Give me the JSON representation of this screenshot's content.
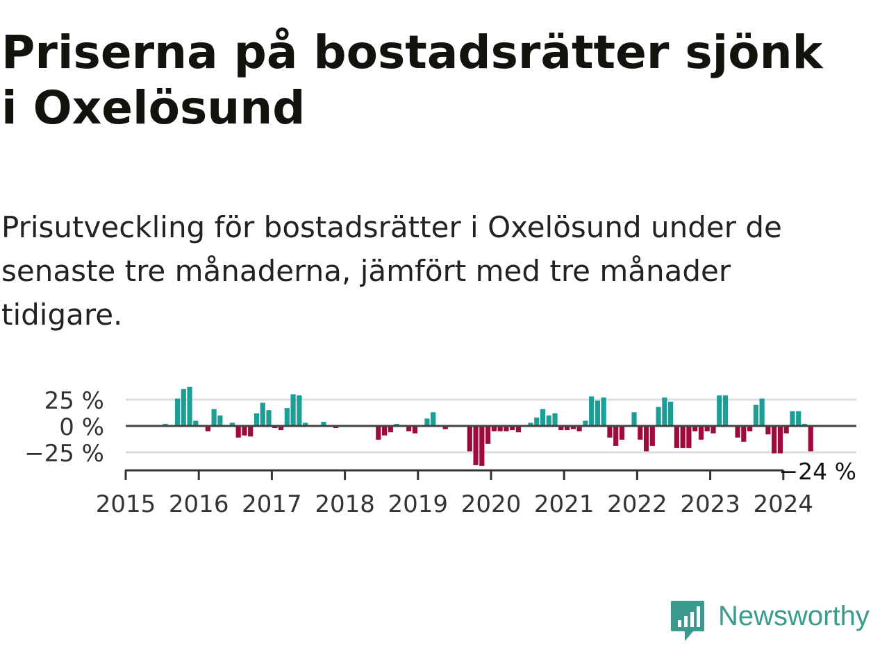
{
  "title": "Priserna på bostadsrätter sjönk i Oxelösund",
  "subtitle": "Prisutveckling för bostadsrätter i Oxelösund under de senaste tre månaderna, jämfört med tre månader tidigare.",
  "brand": {
    "name": "Newsworthy",
    "color": "#3a9a8e",
    "icon": "bar-chart-speech-bubble-icon"
  },
  "colors": {
    "positive": "#1a9e96",
    "negative": "#9e0a3c",
    "grid": "#dddddd",
    "axis": "#333333",
    "zero_line": "#444444"
  },
  "chart_data": {
    "type": "bar",
    "x_axis": "time (monthly)",
    "y_unit": "%",
    "y_ticks": [
      {
        "value": 25,
        "label": "25 %"
      },
      {
        "value": 0,
        "label": "0 %"
      },
      {
        "value": -25,
        "label": "−25 %"
      }
    ],
    "ylim": [
      -40,
      45
    ],
    "x_ticks": [
      "2015",
      "2016",
      "2017",
      "2018",
      "2019",
      "2020",
      "2021",
      "2022",
      "2023",
      "2024"
    ],
    "x_start": "2015-01",
    "x_end": "2024-12",
    "grid": true,
    "series": [
      {
        "values": [
          {
            "month": "2015-07",
            "value": 2
          },
          {
            "month": "2015-09",
            "value": 26
          },
          {
            "month": "2015-10",
            "value": 35
          },
          {
            "month": "2015-11",
            "value": 37
          },
          {
            "month": "2015-12",
            "value": 5
          },
          {
            "month": "2016-02",
            "value": -5
          },
          {
            "month": "2016-03",
            "value": 16
          },
          {
            "month": "2016-04",
            "value": 10
          },
          {
            "month": "2016-06",
            "value": 3
          },
          {
            "month": "2016-07",
            "value": -11
          },
          {
            "month": "2016-08",
            "value": -9
          },
          {
            "month": "2016-09",
            "value": -10
          },
          {
            "month": "2016-10",
            "value": 12
          },
          {
            "month": "2016-11",
            "value": 22
          },
          {
            "month": "2016-12",
            "value": 15
          },
          {
            "month": "2017-01",
            "value": -2
          },
          {
            "month": "2017-02",
            "value": -4
          },
          {
            "month": "2017-03",
            "value": 17
          },
          {
            "month": "2017-04",
            "value": 30
          },
          {
            "month": "2017-05",
            "value": 29
          },
          {
            "month": "2017-06",
            "value": 3
          },
          {
            "month": "2017-08",
            "value": 1
          },
          {
            "month": "2017-09",
            "value": 4
          },
          {
            "month": "2017-11",
            "value": -2
          },
          {
            "month": "2018-06",
            "value": -13
          },
          {
            "month": "2018-07",
            "value": -9
          },
          {
            "month": "2018-08",
            "value": -6
          },
          {
            "month": "2018-09",
            "value": 2
          },
          {
            "month": "2018-11",
            "value": -5
          },
          {
            "month": "2018-12",
            "value": -7
          },
          {
            "month": "2019-02",
            "value": 7
          },
          {
            "month": "2019-03",
            "value": 13
          },
          {
            "month": "2019-05",
            "value": -3
          },
          {
            "month": "2019-09",
            "value": -24
          },
          {
            "month": "2019-10",
            "value": -37
          },
          {
            "month": "2019-11",
            "value": -38
          },
          {
            "month": "2019-12",
            "value": -17
          },
          {
            "month": "2020-01",
            "value": -5
          },
          {
            "month": "2020-02",
            "value": -5
          },
          {
            "month": "2020-03",
            "value": -5
          },
          {
            "month": "2020-04",
            "value": -4
          },
          {
            "month": "2020-05",
            "value": -6
          },
          {
            "month": "2020-07",
            "value": 3
          },
          {
            "month": "2020-08",
            "value": 8
          },
          {
            "month": "2020-09",
            "value": 16
          },
          {
            "month": "2020-10",
            "value": 10
          },
          {
            "month": "2020-11",
            "value": 12
          },
          {
            "month": "2020-12",
            "value": -4
          },
          {
            "month": "2021-01",
            "value": -4
          },
          {
            "month": "2021-02",
            "value": -3
          },
          {
            "month": "2021-03",
            "value": -5
          },
          {
            "month": "2021-04",
            "value": 5
          },
          {
            "month": "2021-05",
            "value": 28
          },
          {
            "month": "2021-06",
            "value": 24
          },
          {
            "month": "2021-07",
            "value": 27
          },
          {
            "month": "2021-08",
            "value": -11
          },
          {
            "month": "2021-09",
            "value": -19
          },
          {
            "month": "2021-10",
            "value": -13
          },
          {
            "month": "2021-12",
            "value": 13
          },
          {
            "month": "2022-01",
            "value": -13
          },
          {
            "month": "2022-02",
            "value": -24
          },
          {
            "month": "2022-03",
            "value": -19
          },
          {
            "month": "2022-04",
            "value": 18
          },
          {
            "month": "2022-05",
            "value": 27
          },
          {
            "month": "2022-06",
            "value": 23
          },
          {
            "month": "2022-07",
            "value": -21
          },
          {
            "month": "2022-08",
            "value": -21
          },
          {
            "month": "2022-09",
            "value": -21
          },
          {
            "month": "2022-10",
            "value": -5
          },
          {
            "month": "2022-11",
            "value": -13
          },
          {
            "month": "2022-12",
            "value": -5
          },
          {
            "month": "2023-01",
            "value": -7
          },
          {
            "month": "2023-02",
            "value": 29
          },
          {
            "month": "2023-03",
            "value": 29
          },
          {
            "month": "2023-05",
            "value": -11
          },
          {
            "month": "2023-06",
            "value": -15
          },
          {
            "month": "2023-07",
            "value": -5
          },
          {
            "month": "2023-08",
            "value": 20
          },
          {
            "month": "2023-09",
            "value": 26
          },
          {
            "month": "2023-10",
            "value": -8
          },
          {
            "month": "2023-11",
            "value": -26
          },
          {
            "month": "2023-12",
            "value": -26
          },
          {
            "month": "2024-01",
            "value": -7
          },
          {
            "month": "2024-02",
            "value": 14
          },
          {
            "month": "2024-03",
            "value": 14
          },
          {
            "month": "2024-04",
            "value": 2
          },
          {
            "month": "2024-05",
            "value": -24
          }
        ]
      }
    ],
    "annotation": {
      "month": "2024-05",
      "value": -24,
      "label": "−24 %"
    }
  }
}
